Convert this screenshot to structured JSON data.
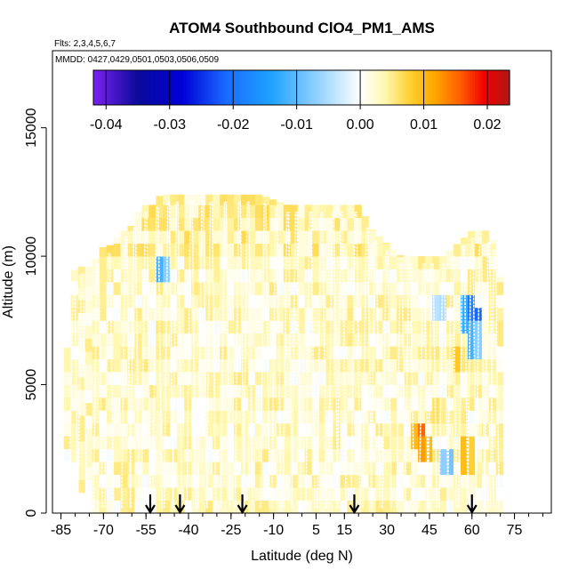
{
  "chart_data": {
    "type": "heatmap",
    "title": "ATOM4 Southbound ClO4_PM1_AMS",
    "flights_note": "Flts: 2,3,4,5,6,7",
    "dates_note": "MMDD: 0427,0429,0501,0503,0506,0509",
    "xlabel": "Latitude (deg N)",
    "ylabel": "Altitude (m)",
    "xlim": [
      -88,
      88
    ],
    "ylim": [
      0,
      18000
    ],
    "x_ticks": [
      -85,
      -70,
      -55,
      -40,
      -25,
      -10,
      5,
      15,
      30,
      45,
      60,
      75
    ],
    "x_tick_labels": [
      "-85",
      "-70",
      "-55",
      "-40",
      "-25",
      "-10",
      "5",
      "15",
      "30",
      "45",
      "60",
      "75"
    ],
    "y_ticks": [
      0,
      5000,
      10000,
      15000
    ],
    "y_tick_labels": [
      "0",
      "5000",
      "10000",
      "15000"
    ],
    "colorbar": {
      "range": [
        -0.042,
        0.0235
      ],
      "ticks": [
        -0.04,
        -0.03,
        -0.02,
        -0.01,
        0.0,
        0.01,
        0.02
      ],
      "tick_labels": [
        "-0.04",
        "-0.03",
        "-0.02",
        "-0.01",
        "0.00",
        "0.01",
        "0.02"
      ],
      "colors": [
        "#7b22f0",
        "#0a0a9a",
        "#0000d8",
        "#1a6cff",
        "#1ea2ff",
        "#8fd0ff",
        "#ffffff",
        "#fff8b0",
        "#ffd030",
        "#ffa600",
        "#ff6000",
        "#f00000",
        "#b01818"
      ]
    },
    "coverage_profile": {
      "lat": [
        -84,
        -82,
        -80,
        -75,
        -72,
        -70,
        -68,
        -64,
        -60,
        -57,
        -55,
        -52,
        -50,
        -45,
        -40,
        -35,
        -30,
        -25,
        -20,
        -15,
        -10,
        -5,
        0,
        5,
        10,
        15,
        20,
        25,
        30,
        35,
        40,
        45,
        50,
        55,
        60,
        65,
        68,
        70
      ],
      "top_alt": [
        3000,
        8500,
        9600,
        9600,
        10000,
        10400,
        10400,
        10900,
        11200,
        11900,
        12000,
        12000,
        12400,
        12400,
        12400,
        12400,
        12400,
        12400,
        12400,
        12400,
        12200,
        12000,
        12000,
        12000,
        12000,
        12000,
        12000,
        11000,
        10500,
        10000,
        10000,
        10000,
        10000,
        10500,
        11000,
        11000,
        10500,
        9000
      ]
    },
    "background_value": 0.002,
    "anomalies": [
      {
        "lat": 60.5,
        "alt": 7300,
        "value": -0.03
      },
      {
        "lat": 59.5,
        "alt": 7800,
        "value": -0.02
      },
      {
        "lat": 60.0,
        "alt": 6800,
        "value": -0.012
      },
      {
        "lat": 42.0,
        "alt": 2900,
        "value": 0.016
      },
      {
        "lat": 43.0,
        "alt": 2500,
        "value": 0.014
      },
      {
        "lat": 51.5,
        "alt": 2100,
        "value": -0.01
      },
      {
        "lat": 58.0,
        "alt": 2200,
        "value": 0.011
      },
      {
        "lat": 55.0,
        "alt": 6000,
        "value": 0.009
      },
      {
        "lat": 49.0,
        "alt": 8000,
        "value": -0.006
      },
      {
        "lat": -50.0,
        "alt": 9500,
        "value": -0.012
      },
      {
        "lat": 48.0,
        "alt": 4000,
        "value": 0.007
      }
    ],
    "profile_latitudes": [
      -80.5,
      -77.5,
      -72,
      -68,
      -62,
      -59,
      -55,
      -51,
      -47,
      -44,
      -39,
      -35,
      -32,
      -27,
      -22,
      -19,
      -13,
      -9,
      -5,
      -2,
      3,
      7,
      11,
      14,
      19,
      23,
      26,
      30,
      35,
      38,
      43,
      46,
      50,
      53,
      57,
      60,
      63,
      66,
      68
    ],
    "marker_latitudes": [
      -53.5,
      -43,
      -21,
      18.5,
      60
    ]
  }
}
